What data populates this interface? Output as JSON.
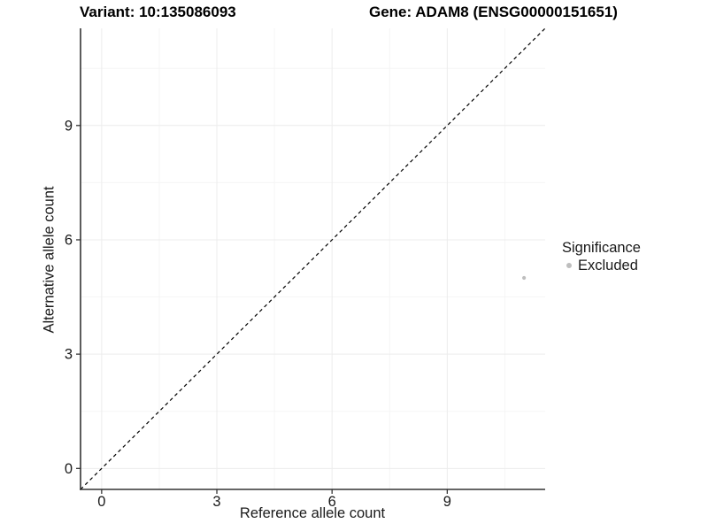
{
  "chart_data": {
    "type": "scatter",
    "title_left": "Variant: 10:135086093",
    "title_right": "Gene: ADAM8 (ENSG00000151651)",
    "xlabel": "Reference allele count",
    "ylabel": "Alternative allele count",
    "x_ticks": [
      0,
      3,
      6,
      9
    ],
    "y_ticks": [
      0,
      3,
      6,
      9
    ],
    "xlim": [
      -0.55,
      11.55
    ],
    "ylim": [
      -0.55,
      11.55
    ],
    "grid": true,
    "legend_position": "right",
    "legend": {
      "title": "Significance",
      "items": [
        {
          "label": "Excluded",
          "color": "#bebebe"
        }
      ]
    },
    "reference_line": {
      "type": "identity",
      "equation": "y = x",
      "style": "dashed",
      "color": "#000000"
    },
    "series": [
      {
        "name": "Excluded",
        "color": "#bebebe",
        "points": [
          {
            "x": 11,
            "y": 5
          }
        ]
      }
    ],
    "colors": {
      "axis": "#333333",
      "grid_major": "#ececec",
      "grid_minor": "#f5f5f5",
      "tick": "#333333",
      "text": "#1a1a1a",
      "background": "#ffffff"
    }
  }
}
